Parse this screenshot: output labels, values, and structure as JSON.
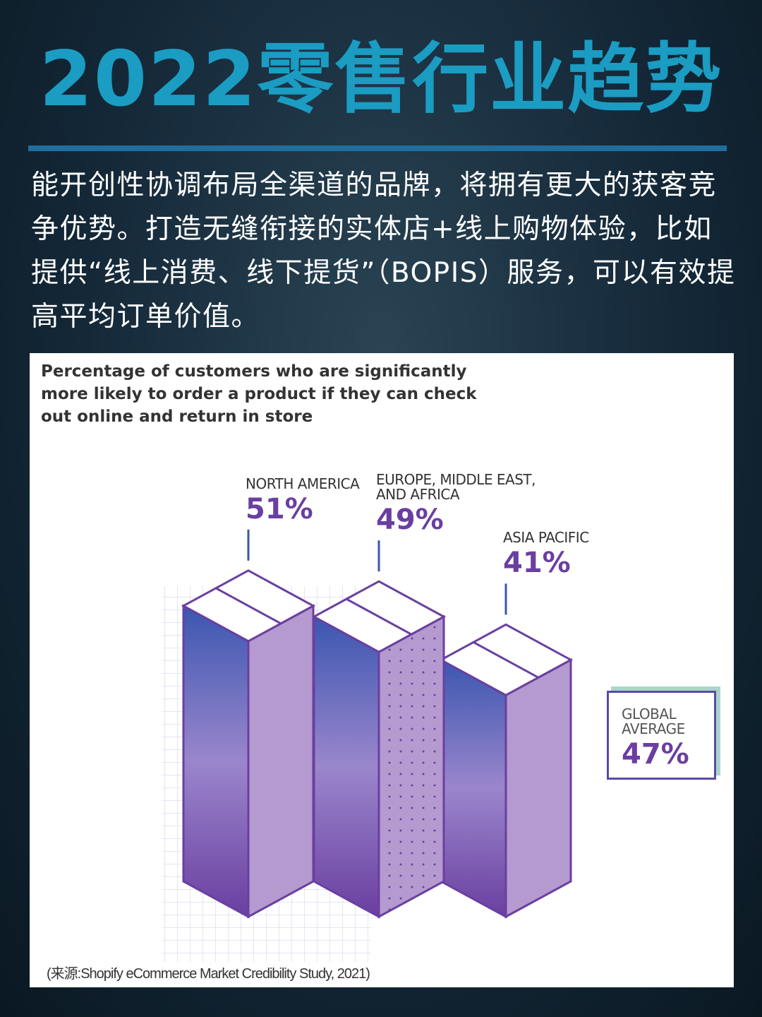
{
  "title": "2022零售行业趋势",
  "body": "能开创性协调布局全渠道的品牌，将拥有更大的获客竞争优势。打造无缝衔接的实体店+线上购物体验，比如提供“线上消费、线下提货”（BOPIS）服务，可以有效提高平均订单价值。",
  "chart_data": {
    "type": "bar",
    "title": "Percentage of customers who are significantly more likely to order a product if they can check out online and return in store",
    "categories": [
      "NORTH AMERICA",
      "EUROPE, MIDDLE EAST, AND AFRICA",
      "ASIA PACIFIC"
    ],
    "values": [
      51,
      49,
      41
    ],
    "value_labels": [
      "51%",
      "49%",
      "41%"
    ],
    "color": "#6a3fa0",
    "average": {
      "label": "GLOBAL AVERAGE",
      "value": 47,
      "value_label": "47%"
    },
    "source": "(来源:Shopify eCommerce Market Credibility Study, 2021)"
  }
}
